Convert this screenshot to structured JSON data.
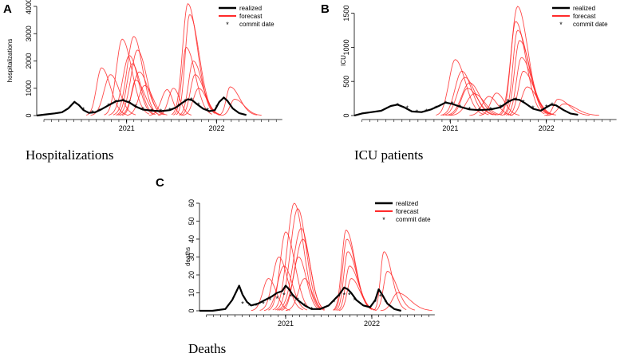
{
  "colors": {
    "realized": "#000000",
    "forecast": "#ff2a2a",
    "commit": "#1a1aff"
  },
  "legend": {
    "realized": "realized",
    "forecast": "forecast",
    "commit": "commit date",
    "commit_symbol": "*"
  },
  "chart_data": [
    {
      "panel": "A",
      "caption": "Hospitalizations",
      "type": "line",
      "ylabel": "hospitalizations",
      "ylim": [
        0,
        4000
      ],
      "yticks": [
        0,
        1000,
        2000,
        3000,
        4000
      ],
      "xlim": [
        2020.0,
        2022.75
      ],
      "xticks": [
        {
          "value": 2021,
          "label": "2021"
        },
        {
          "value": 2022,
          "label": "2022"
        }
      ],
      "legend_position": "top-right",
      "realized": {
        "x": [
          2020.0,
          2020.1,
          2020.2,
          2020.28,
          2020.35,
          2020.42,
          2020.47,
          2020.52,
          2020.58,
          2020.65,
          2020.72,
          2020.8,
          2020.88,
          2020.96,
          2021.03,
          2021.1,
          2021.18,
          2021.28,
          2021.38,
          2021.48,
          2021.55,
          2021.62,
          2021.68,
          2021.73,
          2021.78,
          2021.85,
          2021.92,
          2021.98,
          2022.03,
          2022.08,
          2022.12,
          2022.18,
          2022.25,
          2022.33
        ],
        "y": [
          0,
          40,
          80,
          120,
          260,
          500,
          380,
          200,
          100,
          120,
          230,
          380,
          520,
          560,
          480,
          330,
          220,
          180,
          160,
          200,
          300,
          470,
          600,
          560,
          420,
          250,
          160,
          200,
          500,
          660,
          540,
          260,
          90,
          20
        ]
      },
      "commits": {
        "x": [
          2020.42,
          2020.52,
          2020.62,
          2020.7,
          2020.8,
          2020.88,
          2020.96,
          2021.03,
          2021.1,
          2021.18,
          2021.28,
          2021.38,
          2021.48,
          2021.58,
          2021.65,
          2021.72,
          2021.8,
          2021.9,
          2022.0,
          2022.08
        ],
        "y": [
          450,
          220,
          110,
          180,
          360,
          500,
          540,
          480,
          330,
          230,
          180,
          160,
          200,
          350,
          520,
          590,
          400,
          200,
          300,
          620
        ]
      },
      "forecasts": [
        {
          "start": 2020.75,
          "peak_x": 2020.95,
          "peak": 2800,
          "end": 2021.25
        },
        {
          "start": 2020.8,
          "peak_x": 2021.03,
          "peak": 2200,
          "end": 2021.3
        },
        {
          "start": 2020.85,
          "peak_x": 2021.08,
          "peak": 2900,
          "end": 2021.35
        },
        {
          "start": 2020.9,
          "peak_x": 2021.12,
          "peak": 2400,
          "end": 2021.4
        },
        {
          "start": 2020.55,
          "peak_x": 2020.72,
          "peak": 1750,
          "end": 2021.0
        },
        {
          "start": 2020.6,
          "peak_x": 2020.82,
          "peak": 1500,
          "end": 2021.1
        },
        {
          "start": 2020.88,
          "peak_x": 2021.06,
          "peak": 1900,
          "end": 2021.32
        },
        {
          "start": 2020.92,
          "peak_x": 2021.14,
          "peak": 1600,
          "end": 2021.42
        },
        {
          "start": 2020.95,
          "peak_x": 2021.1,
          "peak": 1300,
          "end": 2021.38
        },
        {
          "start": 2021.0,
          "peak_x": 2021.2,
          "peak": 1100,
          "end": 2021.45
        },
        {
          "start": 2021.25,
          "peak_x": 2021.45,
          "peak": 950,
          "end": 2021.62
        },
        {
          "start": 2021.35,
          "peak_x": 2021.52,
          "peak": 1000,
          "end": 2021.72
        },
        {
          "start": 2021.5,
          "peak_x": 2021.68,
          "peak": 4100,
          "end": 2021.98
        },
        {
          "start": 2021.55,
          "peak_x": 2021.7,
          "peak": 3700,
          "end": 2022.0
        },
        {
          "start": 2021.52,
          "peak_x": 2021.66,
          "peak": 2500,
          "end": 2021.95
        },
        {
          "start": 2021.58,
          "peak_x": 2021.74,
          "peak": 2000,
          "end": 2022.02
        },
        {
          "start": 2021.6,
          "peak_x": 2021.76,
          "peak": 1500,
          "end": 2022.05
        },
        {
          "start": 2021.62,
          "peak_x": 2021.8,
          "peak": 1000,
          "end": 2022.05
        },
        {
          "start": 2022.02,
          "peak_x": 2022.15,
          "peak": 1050,
          "end": 2022.45
        },
        {
          "start": 2022.05,
          "peak_x": 2022.2,
          "peak": 600,
          "end": 2022.5
        }
      ]
    },
    {
      "panel": "B",
      "caption": "ICU patients",
      "type": "line",
      "ylabel": "ICU",
      "ylim": [
        0,
        1600
      ],
      "yticks": [
        0,
        500,
        1000,
        1500
      ],
      "xlim": [
        2020.0,
        2022.75
      ],
      "xticks": [
        {
          "value": 2021,
          "label": "2021"
        },
        {
          "value": 2022,
          "label": "2022"
        }
      ],
      "legend_position": "top-right",
      "realized": {
        "x": [
          2020.0,
          2020.08,
          2020.18,
          2020.28,
          2020.38,
          2020.45,
          2020.52,
          2020.6,
          2020.7,
          2020.8,
          2020.88,
          2020.95,
          2021.02,
          2021.1,
          2021.2,
          2021.3,
          2021.42,
          2021.52,
          2021.6,
          2021.66,
          2021.72,
          2021.78,
          2021.86,
          2021.94,
          2022.0,
          2022.05,
          2022.1,
          2022.18,
          2022.25,
          2022.33
        ],
        "y": [
          0,
          30,
          50,
          70,
          140,
          160,
          120,
          60,
          50,
          90,
          140,
          190,
          170,
          130,
          90,
          80,
          90,
          120,
          200,
          240,
          230,
          180,
          100,
          70,
          120,
          160,
          150,
          80,
          30,
          10
        ]
      },
      "commits": {
        "x": [
          2020.45,
          2020.55,
          2020.65,
          2020.75,
          2020.85,
          2020.95,
          2021.02,
          2021.1,
          2021.2,
          2021.3,
          2021.42,
          2021.52,
          2021.6,
          2021.68,
          2021.76,
          2021.86,
          2022.0,
          2022.06
        ],
        "y": [
          150,
          110,
          55,
          65,
          110,
          180,
          175,
          130,
          95,
          80,
          95,
          130,
          210,
          235,
          200,
          110,
          130,
          160
        ]
      },
      "forecasts": [
        {
          "start": 2020.85,
          "peak_x": 2021.05,
          "peak": 820,
          "end": 2021.35
        },
        {
          "start": 2020.9,
          "peak_x": 2021.12,
          "peak": 650,
          "end": 2021.4
        },
        {
          "start": 2020.92,
          "peak_x": 2021.15,
          "peak": 560,
          "end": 2021.45
        },
        {
          "start": 2020.95,
          "peak_x": 2021.2,
          "peak": 480,
          "end": 2021.5
        },
        {
          "start": 2020.98,
          "peak_x": 2021.18,
          "peak": 400,
          "end": 2021.48
        },
        {
          "start": 2021.0,
          "peak_x": 2021.25,
          "peak": 320,
          "end": 2021.55
        },
        {
          "start": 2021.2,
          "peak_x": 2021.4,
          "peak": 280,
          "end": 2021.65
        },
        {
          "start": 2021.3,
          "peak_x": 2021.48,
          "peak": 330,
          "end": 2021.72
        },
        {
          "start": 2021.5,
          "peak_x": 2021.7,
          "peak": 1600,
          "end": 2022.0
        },
        {
          "start": 2021.52,
          "peak_x": 2021.68,
          "peak": 1380,
          "end": 2021.98
        },
        {
          "start": 2021.55,
          "peak_x": 2021.7,
          "peak": 1250,
          "end": 2022.02
        },
        {
          "start": 2021.56,
          "peak_x": 2021.72,
          "peak": 1100,
          "end": 2022.04
        },
        {
          "start": 2021.58,
          "peak_x": 2021.74,
          "peak": 850,
          "end": 2022.05
        },
        {
          "start": 2021.6,
          "peak_x": 2021.76,
          "peak": 650,
          "end": 2022.08
        },
        {
          "start": 2021.62,
          "peak_x": 2021.8,
          "peak": 420,
          "end": 2022.1
        },
        {
          "start": 2021.98,
          "peak_x": 2022.12,
          "peak": 240,
          "end": 2022.45
        },
        {
          "start": 2022.0,
          "peak_x": 2022.18,
          "peak": 170,
          "end": 2022.55
        }
      ]
    },
    {
      "panel": "C",
      "caption": "Deaths",
      "type": "line",
      "ylabel": "deaths",
      "ylim": [
        0,
        60
      ],
      "yticks": [
        0,
        10,
        20,
        30,
        40,
        50,
        60
      ],
      "xlim": [
        2020.0,
        2022.75
      ],
      "xticks": [
        {
          "value": 2021,
          "label": "2021"
        },
        {
          "value": 2022,
          "label": "2022"
        }
      ],
      "legend_position": "top-right",
      "realized": {
        "x": [
          2020.0,
          2020.15,
          2020.3,
          2020.38,
          2020.42,
          2020.46,
          2020.5,
          2020.55,
          2020.6,
          2020.68,
          2020.76,
          2020.84,
          2020.9,
          2020.96,
          2021.0,
          2021.04,
          2021.08,
          2021.14,
          2021.22,
          2021.3,
          2021.4,
          2021.5,
          2021.56,
          2021.62,
          2021.68,
          2021.72,
          2021.76,
          2021.82,
          2021.9,
          2021.98,
          2022.04,
          2022.08,
          2022.12,
          2022.18,
          2022.26,
          2022.34
        ],
        "y": [
          0,
          0,
          1,
          6,
          10,
          14,
          9,
          5,
          3,
          4,
          6,
          8,
          10,
          11,
          14,
          12,
          9,
          6,
          3,
          1,
          1,
          3,
          6,
          9,
          13,
          12,
          10,
          6,
          3,
          2,
          6,
          12,
          9,
          4,
          1,
          0
        ]
      },
      "commits": {
        "x": [
          2020.5,
          2020.58,
          2020.66,
          2020.74,
          2020.82,
          2020.9,
          2020.98,
          2021.06,
          2021.14,
          2021.22,
          2021.3,
          2021.56,
          2021.62,
          2021.68,
          2021.74,
          2021.8,
          2022.04,
          2022.1,
          2022.16
        ],
        "y": [
          4,
          3,
          3,
          4,
          6,
          7,
          9,
          8,
          6,
          3,
          1,
          5,
          8,
          9,
          9,
          6,
          5,
          8,
          5
        ]
      },
      "forecasts": [
        {
          "start": 2020.85,
          "peak_x": 2021.1,
          "peak": 60,
          "end": 2021.4
        },
        {
          "start": 2020.88,
          "peak_x": 2021.14,
          "peak": 57,
          "end": 2021.42
        },
        {
          "start": 2020.8,
          "peak_x": 2021.0,
          "peak": 44,
          "end": 2021.3
        },
        {
          "start": 2020.9,
          "peak_x": 2021.18,
          "peak": 46,
          "end": 2021.45
        },
        {
          "start": 2020.92,
          "peak_x": 2021.2,
          "peak": 40,
          "end": 2021.45
        },
        {
          "start": 2020.7,
          "peak_x": 2020.92,
          "peak": 30,
          "end": 2021.2
        },
        {
          "start": 2020.75,
          "peak_x": 2020.98,
          "peak": 25,
          "end": 2021.25
        },
        {
          "start": 2020.95,
          "peak_x": 2021.15,
          "peak": 30,
          "end": 2021.4
        },
        {
          "start": 2020.6,
          "peak_x": 2020.8,
          "peak": 18,
          "end": 2021.05
        },
        {
          "start": 2021.0,
          "peak_x": 2021.22,
          "peak": 18,
          "end": 2021.45
        },
        {
          "start": 2021.55,
          "peak_x": 2021.7,
          "peak": 45,
          "end": 2022.0
        },
        {
          "start": 2021.56,
          "peak_x": 2021.71,
          "peak": 40,
          "end": 2022.0
        },
        {
          "start": 2021.58,
          "peak_x": 2021.72,
          "peak": 33,
          "end": 2022.02
        },
        {
          "start": 2021.6,
          "peak_x": 2021.74,
          "peak": 25,
          "end": 2022.04
        },
        {
          "start": 2021.62,
          "peak_x": 2021.76,
          "peak": 18,
          "end": 2022.05
        },
        {
          "start": 2022.02,
          "peak_x": 2022.14,
          "peak": 33,
          "end": 2022.4
        },
        {
          "start": 2022.04,
          "peak_x": 2022.18,
          "peak": 22,
          "end": 2022.5
        },
        {
          "start": 2022.1,
          "peak_x": 2022.3,
          "peak": 10,
          "end": 2022.7
        }
      ]
    }
  ]
}
